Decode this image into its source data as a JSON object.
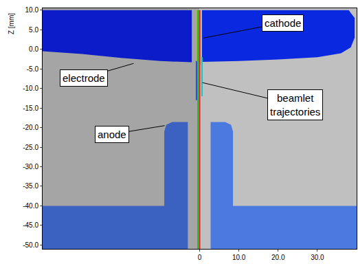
{
  "chart_data": {
    "type": "scatter",
    "ylabel": "Z [mm]",
    "xlim": [
      -40,
      40
    ],
    "xticks": [
      0,
      {
        "value": 10,
        "label": "10.0"
      },
      {
        "value": 20,
        "label": "20.0"
      },
      {
        "value": 30,
        "label": "30.0"
      }
    ],
    "ylim": [
      -51,
      10.5
    ],
    "yticks": [
      {
        "value": 10,
        "label": "10.0"
      },
      {
        "value": 5,
        "label": "5.0"
      },
      {
        "value": 0,
        "label": "0.0"
      },
      {
        "value": -5,
        "label": "-5.0"
      },
      {
        "value": -10,
        "label": "-10.0"
      },
      {
        "value": -15,
        "label": "-15.0"
      },
      {
        "value": -20,
        "label": "-20.0"
      },
      {
        "value": -25,
        "label": "-25.0"
      },
      {
        "value": -30,
        "label": "-30.0"
      },
      {
        "value": -35,
        "label": "-35.0"
      },
      {
        "value": -40,
        "label": "-40.0"
      },
      {
        "value": -45,
        "label": "-45.0"
      },
      {
        "value": -50,
        "label": "-50.0"
      }
    ],
    "grid": false,
    "regions": [
      {
        "color": "#a5a5a5",
        "x": [
          -40,
          0,
          0,
          -40
        ],
        "y": [
          10.5,
          10.5,
          -51,
          -51
        ]
      },
      {
        "color": "#c0c0c0",
        "x": [
          0,
          40,
          40,
          0
        ],
        "y": [
          10.5,
          10.5,
          -51,
          -51
        ]
      },
      {
        "color": "#0b1cc8",
        "x": [
          -40,
          -2,
          -2,
          -10,
          -20,
          -30,
          -40
        ],
        "y": [
          10,
          10,
          -3.3,
          -3.0,
          -2.2,
          -1.2,
          -0.5
        ]
      },
      {
        "color": "#0a28e0",
        "x": [
          0.6,
          38,
          39.5,
          39.5,
          38.5,
          36,
          30,
          20,
          10,
          0.6
        ],
        "y": [
          10,
          10,
          8,
          3,
          0.5,
          -1,
          -2,
          -2.6,
          -3,
          -3.2
        ]
      },
      {
        "color": "#3b62c0",
        "x": [
          -40,
          -3,
          -3,
          -7,
          -8.5,
          -9,
          -9,
          -40
        ],
        "y": [
          -51,
          -51,
          -18.6,
          -18.6,
          -19.3,
          -21,
          -40,
          -40
        ]
      },
      {
        "color": "#4a7ae0",
        "x": [
          2.8,
          40,
          40,
          8.5,
          8.5,
          8,
          6.5,
          2.8
        ],
        "y": [
          -51,
          -51,
          -40,
          -40,
          -21,
          -19.3,
          -18.6,
          -18.6
        ]
      },
      {
        "color": "#8cc63f",
        "x": [
          -0.9,
          0.3,
          0.3,
          -0.9
        ],
        "y": [
          10,
          10,
          -4,
          -4
        ]
      }
    ],
    "series": [
      {
        "color": "#e02020",
        "x": [
          0,
          0
        ],
        "y": [
          10,
          -51
        ]
      },
      {
        "color": "#30b030",
        "x": [
          -0.4,
          -0.4
        ],
        "y": [
          10,
          -51
        ]
      },
      {
        "color": "#20c0c0",
        "x": [
          0.6,
          0.6
        ],
        "y": [
          -2,
          -12
        ]
      },
      {
        "color": "#2050e0",
        "x": [
          -0.8,
          -0.8
        ],
        "y": [
          -3,
          -13
        ]
      }
    ],
    "annotations": [
      {
        "text": [
          "cathode"
        ],
        "x": 1.0,
        "y": 2.9,
        "ax": 21.2,
        "ay": 6.8
      },
      {
        "text": [
          "electrode"
        ],
        "x": -16.8,
        "y": -3.6,
        "ax": -29.5,
        "ay": -7.3
      },
      {
        "text": [
          "beamlet",
          "trajectories"
        ],
        "x": 0.7,
        "y": -8.5,
        "ax": 24.4,
        "ay": -14.2
      },
      {
        "text": [
          "anode"
        ],
        "x": -8.9,
        "y": -19.5,
        "ax": -22.3,
        "ay": -21.7
      }
    ]
  }
}
